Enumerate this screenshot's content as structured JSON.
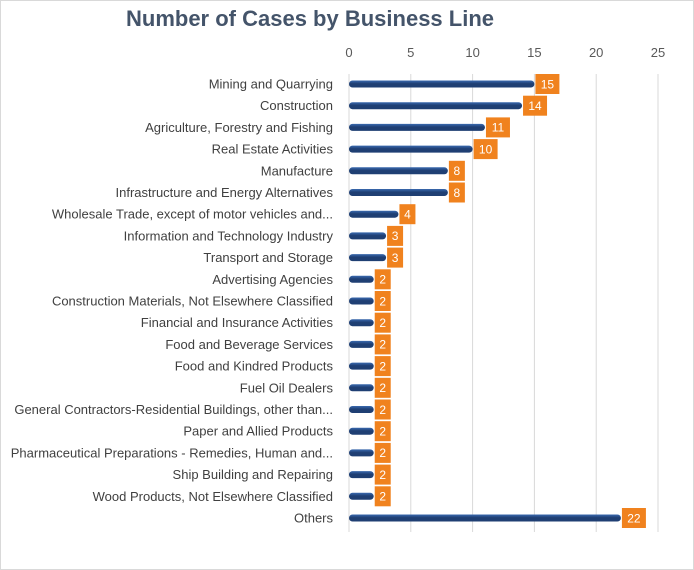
{
  "chart_data": {
    "type": "bar",
    "orientation": "horizontal",
    "title": "Number of Cases by Business Line",
    "xlabel": "",
    "ylabel": "",
    "xlim": [
      0,
      25
    ],
    "x_ticks": [
      0,
      5,
      10,
      15,
      20,
      25
    ],
    "x_axis_position": "top",
    "grid": true,
    "legend": "none",
    "categories": [
      "Mining and Quarrying",
      "Construction",
      "Agriculture, Forestry and Fishing",
      "Real Estate Activities",
      "Manufacture",
      "Infrastructure and Energy Alternatives",
      "Wholesale Trade, except of motor vehicles and...",
      "Information and Technology Industry",
      "Transport and Storage",
      "Advertising Agencies",
      "Construction Materials, Not Elsewhere Classified",
      "Financial and Insurance Activities",
      "Food and Beverage Services",
      "Food and Kindred Products",
      "Fuel Oil Dealers",
      "General Contractors-Residential Buildings, other than...",
      "Paper and Allied Products",
      "Pharmaceutical Preparations - Remedies, Human and...",
      "Ship Building and Repairing",
      "Wood Products, Not Elsewhere Classified",
      "Others"
    ],
    "values": [
      15,
      14,
      11,
      10,
      8,
      8,
      4,
      3,
      3,
      2,
      2,
      2,
      2,
      2,
      2,
      2,
      2,
      2,
      2,
      2,
      22
    ],
    "colors": {
      "bar": "#1f3f73",
      "bar_highlight": "#3a6ab0",
      "data_label_bg": "#f0821e",
      "data_label_text": "#ffffff",
      "gridline": "#d9d9d9",
      "title": "#44546a"
    }
  }
}
